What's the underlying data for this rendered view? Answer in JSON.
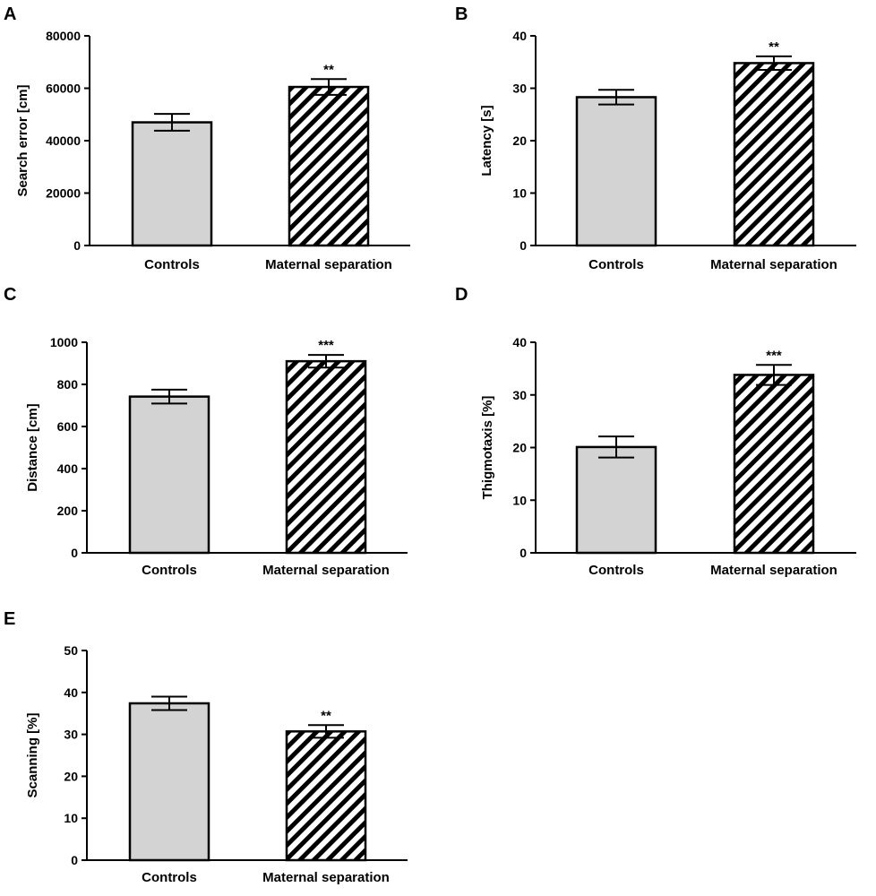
{
  "chart_data": [
    {
      "panel": "A",
      "type": "bar",
      "categories": [
        "Controls",
        "Maternal separation"
      ],
      "values": [
        47000,
        60500
      ],
      "errors": [
        3200,
        3000
      ],
      "significance": [
        "",
        "**"
      ],
      "ylabel": "Search error [cm]",
      "xlabel": "",
      "ylim": [
        0,
        80000
      ],
      "yticks": [
        0,
        20000,
        40000,
        60000,
        80000
      ],
      "bar_styles": [
        "solid",
        "hatched"
      ]
    },
    {
      "panel": "B",
      "type": "bar",
      "categories": [
        "Controls",
        "Maternal separation"
      ],
      "values": [
        28.3,
        34.8
      ],
      "errors": [
        1.4,
        1.3
      ],
      "significance": [
        "",
        "**"
      ],
      "ylabel": "Latency [s]",
      "xlabel": "",
      "ylim": [
        0,
        40
      ],
      "yticks": [
        0,
        10,
        20,
        30,
        40
      ],
      "bar_styles": [
        "solid",
        "hatched"
      ]
    },
    {
      "panel": "C",
      "type": "bar",
      "categories": [
        "Controls",
        "Maternal separation"
      ],
      "values": [
        742,
        910
      ],
      "errors": [
        33,
        30
      ],
      "significance": [
        "",
        "***"
      ],
      "ylabel": "Distance [cm]",
      "xlabel": "",
      "ylim": [
        0,
        1000
      ],
      "yticks": [
        0,
        200,
        400,
        600,
        800,
        1000
      ],
      "bar_styles": [
        "solid",
        "hatched"
      ]
    },
    {
      "panel": "D",
      "type": "bar",
      "categories": [
        "Controls",
        "Maternal separation"
      ],
      "values": [
        20.1,
        33.8
      ],
      "errors": [
        2.0,
        1.9
      ],
      "significance": [
        "",
        "***"
      ],
      "ylabel": "Thigmotaxis [%]",
      "xlabel": "",
      "ylim": [
        0,
        40
      ],
      "yticks": [
        0,
        10,
        20,
        30,
        40
      ],
      "bar_styles": [
        "solid",
        "hatched"
      ]
    },
    {
      "panel": "E",
      "type": "bar",
      "categories": [
        "Controls",
        "Maternal separation"
      ],
      "values": [
        37.4,
        30.7
      ],
      "errors": [
        1.6,
        1.5
      ],
      "significance": [
        "",
        "**"
      ],
      "ylabel": "Scanning [%]",
      "xlabel": "",
      "ylim": [
        0,
        50
      ],
      "yticks": [
        0,
        10,
        20,
        30,
        40,
        50
      ],
      "bar_styles": [
        "solid",
        "hatched"
      ]
    }
  ],
  "colors": {
    "control_fill": "#d3d3d3",
    "hatch_fill": "#ffffff",
    "hatch_stroke": "#000000",
    "axis": "#000000"
  }
}
